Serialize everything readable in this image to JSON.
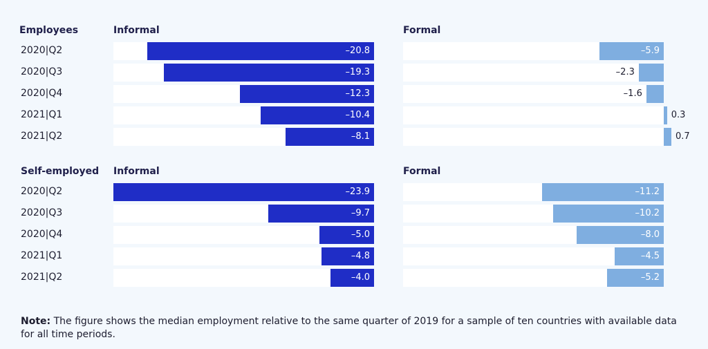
{
  "colors": {
    "informal": "#1f2dc6",
    "formal": "#7faee0",
    "track": "#ffffff"
  },
  "chart_data": {
    "type": "bar",
    "orientation": "horizontal",
    "categories": [
      "2020|Q2",
      "2020|Q3",
      "2020|Q4",
      "2021|Q1",
      "2021|Q2"
    ],
    "groups": [
      {
        "key": "employees",
        "name": "Employees",
        "panels": [
          {
            "key": "informal",
            "title": "Informal",
            "values": [
              -20.8,
              -19.3,
              -12.3,
              -10.4,
              -8.1
            ],
            "labels": [
              "–20.8",
              "–19.3",
              "–12.3",
              "–10.4",
              "–8.1"
            ]
          },
          {
            "key": "formal",
            "title": "Formal",
            "values": [
              -5.9,
              -2.3,
              -1.6,
              0.3,
              0.7
            ],
            "labels": [
              "–5.9",
              "–2.3",
              "–1.6",
              "0.3",
              "0.7"
            ]
          }
        ]
      },
      {
        "key": "selfemployed",
        "name": "Self-employed",
        "panels": [
          {
            "key": "informal",
            "title": "Informal",
            "values": [
              -23.9,
              -9.7,
              -5.0,
              -4.8,
              -4.0
            ],
            "labels": [
              "–23.9",
              "–9.7",
              "–5.0",
              "–4.8",
              "–4.0"
            ]
          },
          {
            "key": "formal",
            "title": "Formal",
            "values": [
              -11.2,
              -10.2,
              -8.0,
              -4.5,
              -5.2
            ],
            "labels": [
              "–11.2",
              "–10.2",
              "–8.0",
              "–4.5",
              "–5.2"
            ]
          }
        ]
      }
    ]
  },
  "note": {
    "label": "Note:",
    "text": " The figure shows the median employment relative to the same quarter of 2019 for a sample of ten countries with available data for all time periods."
  }
}
